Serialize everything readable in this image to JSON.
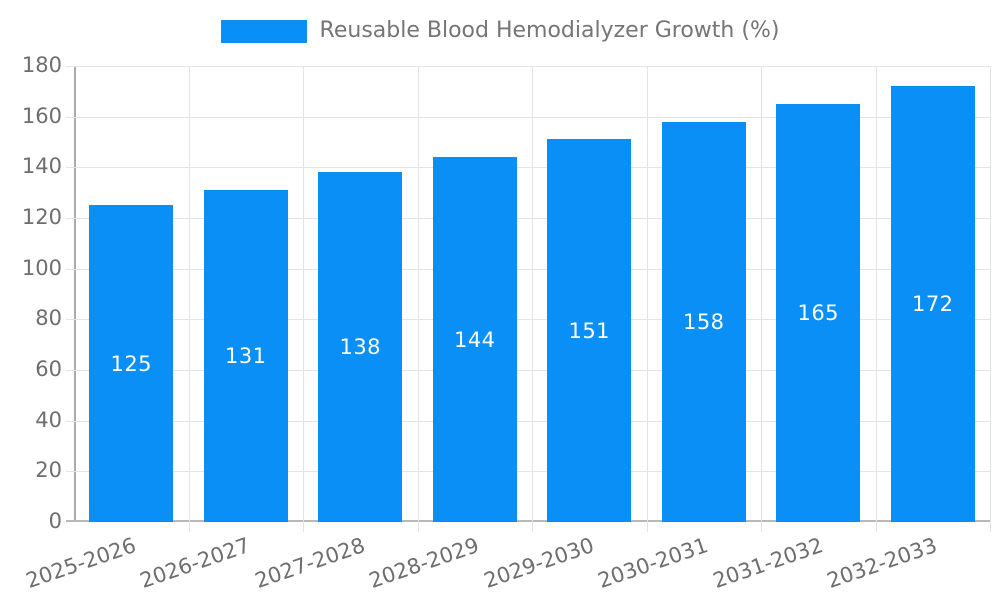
{
  "legend": {
    "label": "Reusable Blood Hemodialyzer Growth (%)"
  },
  "colors": {
    "bar": "#0a8ff7",
    "grid": "#e4e4e4",
    "y_axis_line": "#aaaaaa",
    "x_axis_line": "#b9b9b9",
    "tick_label": "#6e6e6e",
    "legend_text": "#757575",
    "value_label": "#ffffff",
    "background": "#ffffff"
  },
  "chart_data": {
    "type": "bar",
    "title": "Reusable Blood Hemodialyzer Growth (%)",
    "categories": [
      "2025-2026",
      "2026-2027",
      "2027-2028",
      "2028-2029",
      "2029-2030",
      "2030-2031",
      "2031-2032",
      "2032-2033"
    ],
    "values": [
      125,
      131,
      138,
      144,
      151,
      158,
      165,
      172
    ],
    "series": [
      {
        "name": "Reusable Blood Hemodialyzer Growth (%)",
        "values": [
          125,
          131,
          138,
          144,
          151,
          158,
          165,
          172
        ]
      }
    ],
    "xlabel": "",
    "ylabel": "",
    "ylim": [
      0,
      180
    ],
    "ytick_step": 20,
    "ytick_labels": [
      "0",
      "20",
      "40",
      "60",
      "80",
      "100",
      "120",
      "140",
      "160",
      "180"
    ],
    "grid": true,
    "legend_position": "top-center",
    "data_labels": "inside-center",
    "x_label_rotation_deg": -19
  }
}
